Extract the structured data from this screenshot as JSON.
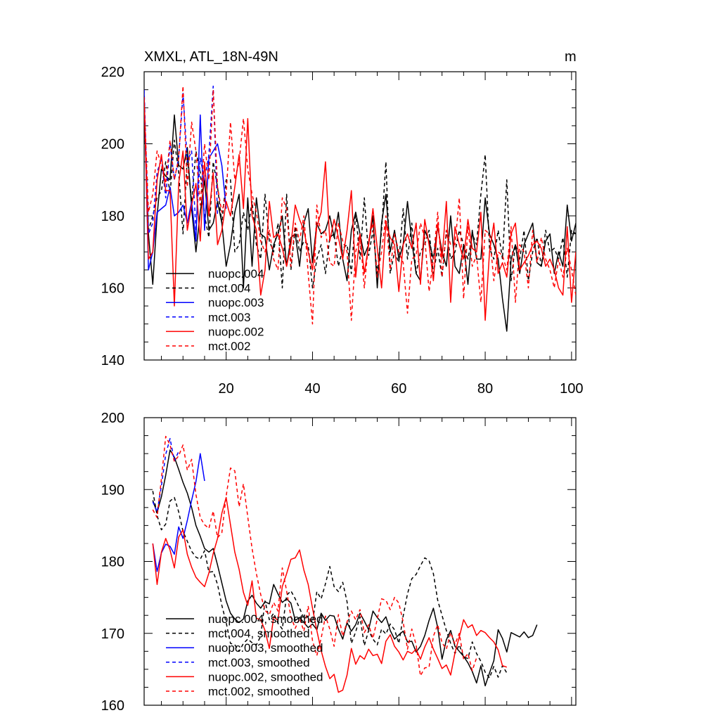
{
  "colors": {
    "black": "#000000",
    "blue": "#0000ff",
    "red": "#ff0000"
  },
  "chart_data": [
    {
      "type": "line",
      "title": "XMXL, ATL_18N-49N",
      "units": "m",
      "xlim": [
        1,
        101
      ],
      "ylim": [
        140,
        220
      ],
      "xticks": [
        20,
        40,
        60,
        80,
        100
      ],
      "yticks": [
        140,
        160,
        180,
        200,
        220
      ],
      "legend_position": "bottom-left",
      "series": [
        {
          "name": "nuopc.004",
          "color": "#000000",
          "dash": "solid",
          "x_start": 1,
          "values": [
            210,
            175,
            161,
            180,
            193,
            191,
            190,
            208,
            194,
            193,
            199,
            182,
            170,
            181,
            190,
            176,
            178,
            184,
            178,
            166,
            172,
            181,
            186,
            160,
            185,
            166,
            185,
            175,
            174,
            165,
            172,
            175,
            180,
            166,
            174,
            175,
            166,
            178,
            182,
            167,
            178,
            175,
            176,
            180,
            174,
            181,
            168,
            162,
            176,
            181,
            175,
            169,
            172,
            180,
            160,
            178,
            186,
            170,
            176,
            168,
            172,
            184,
            173,
            164,
            162,
            176,
            173,
            168,
            177,
            170,
            166,
            180,
            166,
            164,
            172,
            161,
            176,
            168,
            168,
            185,
            175,
            172,
            168,
            157,
            148,
            168,
            172,
            164,
            172,
            175,
            178,
            167,
            166,
            173,
            175,
            164,
            170,
            166,
            183,
            173,
            178
          ]
        },
        {
          "name": "mct.004",
          "color": "#000000",
          "dash": "dashed",
          "x_start": 1,
          "values": [
            208,
            176,
            180,
            185,
            187,
            195,
            186,
            201,
            192,
            175,
            196,
            184,
            198,
            192,
            180,
            174,
            195,
            188,
            178,
            190,
            190,
            170,
            172,
            181,
            176,
            184,
            172,
            168,
            186,
            173,
            170,
            178,
            160,
            186,
            165,
            177,
            170,
            173,
            172,
            160,
            168,
            172,
            164,
            174,
            175,
            166,
            171,
            172,
            164,
            181,
            168,
            185,
            169,
            176,
            164,
            176,
            195,
            164,
            170,
            167,
            182,
            168,
            178,
            164,
            170,
            172,
            176,
            164,
            171,
            163,
            176,
            168,
            170,
            176,
            172,
            168,
            175,
            172,
            186,
            197,
            171,
            168,
            176,
            168,
            190,
            162,
            172,
            168,
            176,
            162,
            170,
            174,
            166,
            176,
            170,
            171,
            168,
            174,
            163,
            176,
            175
          ]
        },
        {
          "name": "nuopc.003",
          "color": "#0000ff",
          "dash": "solid",
          "x_start": 1,
          "values": [
            214,
            165,
            170,
            181,
            182,
            183,
            188,
            180,
            181,
            183,
            178,
            184,
            173,
            208,
            176,
            196,
            198,
            200,
            194,
            182
          ]
        },
        {
          "name": "mct.003",
          "color": "#0000ff",
          "dash": "dashed",
          "x_start": 1,
          "values": [
            215,
            175,
            178,
            192,
            196,
            185,
            200,
            190,
            196,
            214,
            195,
            198,
            176,
            196,
            190,
            197,
            216,
            180
          ]
        },
        {
          "name": "nuopc.002",
          "color": "#ff0000",
          "dash": "solid",
          "x_start": 1,
          "values": [
            213,
            168,
            170,
            190,
            197,
            187,
            187,
            155,
            189,
            198,
            176,
            183,
            189,
            173,
            195,
            180,
            192,
            172,
            176,
            184,
            180,
            188,
            197,
            182,
            207,
            180,
            176,
            158,
            165,
            184,
            174,
            175,
            171,
            166,
            172,
            183,
            179,
            176,
            170,
            165,
            177,
            181,
            195,
            173,
            179,
            174,
            168,
            176,
            187,
            163,
            175,
            164,
            172,
            182,
            171,
            160,
            178,
            174,
            172,
            159,
            172,
            175,
            171,
            178,
            161,
            179,
            172,
            162,
            178,
            168,
            184,
            156,
            177,
            172,
            168,
            179,
            171,
            170,
            181,
            151,
            170,
            178,
            164,
            167,
            163,
            175,
            178,
            165,
            167,
            169,
            172,
            173,
            171,
            166,
            168,
            165,
            160,
            158,
            177,
            156,
            170
          ]
        },
        {
          "name": "mct.002",
          "color": "#ff0000",
          "dash": "dashed",
          "x_start": 1,
          "values": [
            212,
            181,
            186,
            198,
            194,
            189,
            201,
            190,
            196,
            216,
            188,
            206,
            198,
            183,
            200,
            190,
            215,
            188,
            181,
            186,
            206,
            190,
            195,
            207,
            193,
            186,
            181,
            173,
            170,
            176,
            168,
            165,
            185,
            182,
            166,
            178,
            173,
            180,
            164,
            150,
            183,
            174,
            176,
            167,
            166,
            178,
            173,
            170,
            151,
            170,
            175,
            160,
            173,
            178,
            163,
            170,
            180,
            165,
            175,
            170,
            167,
            153,
            168,
            169,
            178,
            174,
            159,
            168,
            181,
            163,
            176,
            172,
            172,
            185,
            157,
            177,
            166,
            169,
            156,
            176,
            175,
            162,
            170,
            169,
            165,
            177,
            156,
            172,
            170,
            160,
            176,
            167,
            174,
            168,
            165,
            160,
            168,
            163,
            171,
            165,
            158
          ]
        }
      ]
    },
    {
      "type": "line",
      "title": "",
      "xlim": [
        1,
        101
      ],
      "ylim": [
        160,
        200
      ],
      "yticks": [
        160,
        170,
        180,
        190,
        200
      ],
      "legend_position": "bottom-left",
      "series": [
        {
          "name": "nuopc.004, smoothed",
          "color": "#000000",
          "dash": "solid",
          "x_start": 3,
          "values": [
            188.5,
            186.8,
            189,
            192,
            195.5,
            194.5,
            192.8,
            191,
            189.5,
            187.5,
            185,
            183.5,
            181.8,
            181.3,
            181.8,
            179.5,
            177,
            174.5,
            172.8,
            172,
            171.5,
            172,
            174.5,
            175.3,
            174.2,
            173.5,
            174.4,
            174.1,
            176.8,
            175.5,
            174.3,
            174.8,
            174.2,
            171.8,
            172.2,
            171.5,
            170.8,
            171.3,
            170.5,
            172.8,
            171.8,
            172.5,
            172.4,
            170.6,
            169.2,
            171.5,
            170.3,
            171.2,
            172.8,
            171.7,
            170.5,
            173.1,
            172.2,
            171.5,
            172.3,
            170.4,
            169.2,
            169.8,
            170.3,
            168.8,
            168.9,
            167.4,
            168.2,
            169.7,
            171.8,
            173.5,
            170.8,
            166.4,
            169.1,
            170.4,
            168.2,
            167.5,
            166.8,
            165.9,
            164.7,
            163.1,
            165.5,
            162.7,
            164.5,
            166.2,
            170.5,
            169.3,
            167.4,
            170.1,
            169.8,
            169.5,
            170.2,
            169.4,
            169.7,
            171.2
          ]
        },
        {
          "name": "mct.004, smoothed",
          "color": "#000000",
          "dash": "dashed",
          "x_start": 3,
          "values": [
            189.8,
            186.4,
            184.4,
            185.2,
            188.4,
            188.9,
            186.9,
            184.2,
            182.8,
            181.4,
            180.6,
            180.3,
            181.5,
            178.5,
            178.6,
            176.8,
            173.9,
            171.5,
            168.6,
            168.4,
            167.5,
            168.6,
            169.2,
            168.7,
            168.4,
            169.6,
            174.5,
            171.9,
            172.8,
            171.4,
            170.6,
            175.3,
            175.9,
            174.8,
            173.5,
            172.1,
            172.4,
            171.5,
            175.8,
            174.8,
            176.9,
            179.3,
            176.5,
            175.8,
            177.1,
            174.4,
            168.6,
            170.2,
            172.3,
            168.3,
            170.4,
            169.2,
            168.4,
            170.6,
            169.9,
            171.3,
            170.5,
            168.6,
            172.4,
            175.5,
            177.6,
            178.2,
            179.4,
            180.5,
            180.1,
            178.3,
            174.6,
            172.5,
            170.4,
            168.6,
            167.2,
            168.4,
            166.7,
            166.5,
            168.8,
            167.2,
            166.1,
            164.6,
            163.8,
            165.4,
            163.9,
            165.5,
            164.5
          ]
        },
        {
          "name": "nuopc.003, smoothed",
          "color": "#0000ff",
          "dash": "solid",
          "x_start": 3,
          "values": [
            182.5,
            178.6,
            181.2,
            182.4,
            182.1,
            181.0,
            184.8,
            183.2,
            185.7,
            188.5,
            191.1,
            195.0,
            191.2
          ]
        },
        {
          "name": "mct.003, smoothed",
          "color": "#0000ff",
          "dash": "dashed",
          "x_start": 3,
          "values": [
            188.3,
            186.9,
            190.5,
            194.9,
            197.1,
            194.0,
            195.3
          ]
        },
        {
          "name": "nuopc.002, smoothed",
          "color": "#ff0000",
          "dash": "solid",
          "x_start": 3,
          "values": [
            182.5,
            176.8,
            181.3,
            183.2,
            181.6,
            179.1,
            183.4,
            184.4,
            181.0,
            179.2,
            177.8,
            177.1,
            176.5,
            178.4,
            181.1,
            183.2,
            186.7,
            188.9,
            185.1,
            181.3,
            178.9,
            175.7,
            173.9,
            177.3,
            172.1,
            171.9,
            170.4,
            167.9,
            172.3,
            171.8,
            176.5,
            178.3,
            180.3,
            180.5,
            181.6,
            178.8,
            176.8,
            173.5,
            170.4,
            167.6,
            165.4,
            163.7,
            164.3,
            161.8,
            162.1,
            164.2,
            167.9,
            165.7,
            166.9,
            166.4,
            167.8,
            166.9,
            167.1,
            165.8,
            168.9,
            169.8,
            168.2,
            167.4,
            166.3,
            167.5,
            167.2,
            167.8,
            166.4,
            168.1,
            169.4,
            167.8,
            166.5,
            165.1,
            165.6,
            164.2,
            167.3,
            169.5,
            171.9,
            170.8,
            171.2,
            169.7,
            170.4,
            170.1,
            169.4,
            168.8,
            167.7,
            165.5,
            165.3
          ]
        },
        {
          "name": "mct.002, smoothed",
          "color": "#ff0000",
          "dash": "dashed",
          "x_start": 3,
          "values": [
            187.2,
            186.1,
            191.5,
            197.4,
            196.2,
            193.9,
            194.7,
            196.2,
            192.7,
            194.2,
            189.3,
            186.1,
            185.1,
            184.6,
            187.0,
            183.3,
            184.0,
            189.1,
            193.0,
            192.6,
            187.6,
            190.8,
            186.2,
            181.8,
            178.3,
            175.4,
            173.2,
            172.6,
            174.3,
            173.1,
            179.1,
            175.9,
            172.3,
            170.7,
            172.1,
            170.3,
            173.8,
            169.0,
            166.9,
            169.3,
            172.4,
            170.6,
            168.2,
            172.6,
            169.6,
            171.6,
            173.1,
            171.9,
            173.3,
            170.1,
            171.2,
            169.3,
            172.0,
            174.8,
            174.6,
            173.3,
            175.0,
            174.2,
            171.6,
            167.8,
            170.6,
            168.4,
            164.1,
            165.2,
            165.3,
            169.6,
            171.2,
            168.7,
            167.8,
            170.1,
            168.5,
            170.0,
            166.4,
            167.2,
            164.8,
            166.6
          ]
        }
      ]
    }
  ]
}
